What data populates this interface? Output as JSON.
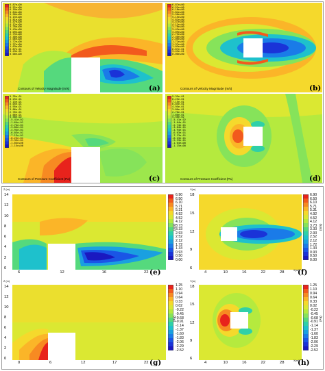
{
  "panels": {
    "a": {
      "label": "(a)",
      "title": "Contours of Velocity Magnitude (m/s)",
      "ticks": [
        "6.87e+00",
        "6.52e+00",
        "6.18e+00",
        "5.84e+00",
        "5.50e+00",
        "5.15e+00",
        "4.81e+00",
        "4.47e+00",
        "4.12e+00",
        "3.78e+00",
        "3.43e+00",
        "3.09e+00",
        "2.75e+00",
        "2.40e+00",
        "2.06e+00",
        "1.72e+00",
        "1.37e+00",
        "1.03e+00",
        "6.87e-01",
        "3.43e-01",
        "0.00e+00"
      ]
    },
    "b": {
      "label": "(b)",
      "title": "Contours of Velocity Magnitude (m/s)",
      "ticks": [
        "6.87e+00",
        "6.52e+00",
        "6.18e+00",
        "5.84e+00",
        "5.50e+00",
        "5.15e+00",
        "4.81e+00",
        "4.47e+00",
        "4.12e+00",
        "3.78e+00",
        "3.43e+00",
        "3.09e+00",
        "2.75e+00",
        "2.40e+00",
        "2.06e+00",
        "1.72e+00",
        "1.37e+00",
        "1.03e+00",
        "6.87e-01",
        "3.43e-01",
        "0.00e+00"
      ]
    },
    "c": {
      "label": "(c)",
      "title": "Contours of Pressure Coefficient (Pa)",
      "ticks": [
        "9.35e-01",
        "8.25e-01",
        "7.15e-01",
        "6.05e-01",
        "4.95e-01",
        "3.86e-01",
        "2.76e-01",
        "1.66e-01",
        "5.58e-02",
        "-5.41e-02",
        "-1.64e-01",
        "-2.74e-01",
        "-3.84e-01",
        "-4.94e-01",
        "-6.03e-01",
        "-7.13e-01",
        "-8.23e-01",
        "-9.33e-01",
        "-1.04e+00",
        "-1.15e+00"
      ]
    },
    "d": {
      "label": "(d)",
      "title": "Contours of Pressure Coefficient (Pa)",
      "ticks": [
        "9.35e-01",
        "8.25e-01",
        "7.15e-01",
        "6.05e-01",
        "4.95e-01",
        "3.86e-01",
        "2.76e-01",
        "1.66e-01",
        "5.58e-02",
        "-5.41e-02",
        "-1.64e-01",
        "-2.74e-01",
        "-3.84e-01",
        "-4.94e-01",
        "-6.03e-01",
        "-7.13e-01",
        "-8.23e-01",
        "-9.33e-01",
        "-1.04e+00",
        "-1.15e+00"
      ]
    },
    "e": {
      "label": "(e)",
      "yaxis": "Z (m)",
      "xaxis_ticks": [
        "6",
        "12",
        "16",
        "22"
      ],
      "yaxis_ticks": [
        "14",
        "12",
        "10",
        "8",
        "6",
        "4",
        "2",
        "0"
      ],
      "cb_unit": "(m/s)",
      "cb_ticks": [
        "6.90",
        "6.50",
        "6.10",
        "5.71",
        "5.31",
        "4.92",
        "4.52",
        "4.12",
        "3.73",
        "3.33",
        "2.93",
        "2.52",
        "2.12",
        "1.72",
        "1.33",
        "0.93",
        "0.50",
        "0.00"
      ]
    },
    "f": {
      "label": "(f)",
      "yaxis": "Y(m)",
      "xaxis": "X(m)",
      "xaxis_ticks": [
        "4",
        "10",
        "16",
        "22",
        "28"
      ],
      "yaxis_ticks": [
        "18",
        "15",
        "12",
        "9",
        "6"
      ],
      "cb_unit": "(m/s)",
      "cb_ticks": [
        "6.90",
        "6.50",
        "6.10",
        "5.71",
        "5.31",
        "4.92",
        "4.52",
        "4.12",
        "3.73",
        "3.33",
        "2.93",
        "2.52",
        "2.12",
        "1.72",
        "1.33",
        "0.93",
        "0.50",
        "0.00"
      ]
    },
    "g": {
      "label": "(g)",
      "yaxis": "Z (m)",
      "xaxis_ticks": [
        "0",
        "6",
        "12",
        "17",
        "22"
      ],
      "yaxis_ticks": [
        "14",
        "12",
        "10",
        "8",
        "6",
        "4",
        "2",
        "0"
      ],
      "cb_unit": "(Pa)",
      "cb_ticks": [
        "1.25",
        "1.10",
        "0.94",
        "0.64",
        "0.33",
        "0.02",
        "-0.22",
        "-0.45",
        "-0.68",
        "-0.91",
        "-1.14",
        "-1.37",
        "-1.60",
        "-1.83",
        "-2.06",
        "-2.29",
        "-2.52"
      ]
    },
    "h": {
      "label": "(h)",
      "yaxis": "Y(m)",
      "xaxis": "X(m)",
      "xaxis_ticks": [
        "4",
        "10",
        "16",
        "22",
        "28"
      ],
      "yaxis_ticks": [
        "18",
        "15",
        "12",
        "9",
        "6"
      ],
      "cb_unit": "(Pa)",
      "cb_ticks": [
        "1.25",
        "1.10",
        "0.94",
        "0.64",
        "0.33",
        "0.02",
        "-0.22",
        "-0.45",
        "-0.68",
        "-0.91",
        "-1.14",
        "-1.37",
        "-1.60",
        "-1.83",
        "-2.06",
        "-2.29",
        "-2.52"
      ]
    }
  },
  "colormap": [
    "#e8231c",
    "#f25a1d",
    "#f78a22",
    "#fbb528",
    "#f5d92c",
    "#dbe832",
    "#b5ea3e",
    "#86e35a",
    "#55d97d",
    "#2fd0a8",
    "#1ec1cc",
    "#1aa0e0",
    "#1a7be8",
    "#1a55e6",
    "#1a33d8",
    "#1a18c0"
  ]
}
